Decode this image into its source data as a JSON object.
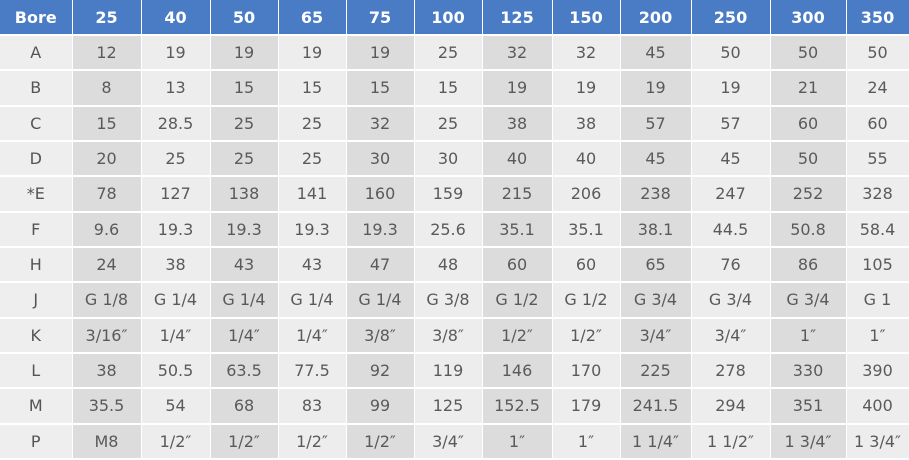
{
  "table": {
    "header": [
      "Bore",
      25,
      40,
      50,
      65,
      75,
      100,
      125,
      150,
      200,
      250,
      300,
      350
    ],
    "rows": [
      [
        "A",
        12,
        19,
        19,
        19,
        19,
        25,
        32,
        32,
        45,
        50,
        50,
        50
      ],
      [
        "B",
        8,
        13,
        15,
        15,
        15,
        15,
        19,
        19,
        19,
        19,
        21,
        24
      ],
      [
        "C",
        15,
        28.5,
        25,
        25,
        32,
        25,
        38,
        38,
        57,
        57,
        60,
        60
      ],
      [
        "D",
        20,
        25,
        25,
        25,
        30,
        30,
        40,
        40,
        45,
        45,
        50,
        55
      ],
      [
        "*E",
        78,
        127,
        138,
        141,
        160,
        159,
        215,
        206,
        238,
        247,
        252,
        328
      ],
      [
        "F",
        9.6,
        19.3,
        19.3,
        19.3,
        19.3,
        25.6,
        35.1,
        35.1,
        38.1,
        44.5,
        50.8,
        58.4
      ],
      [
        "H",
        24,
        38,
        43,
        43,
        47,
        48,
        60,
        60,
        65,
        76,
        86,
        105
      ],
      [
        "J",
        "G 1/8",
        "G 1/4",
        "G 1/4",
        "G 1/4",
        "G 1/4",
        "G 3/8",
        "G 1/2",
        "G 1/2",
        "G 3/4",
        "G 3/4",
        "G 3/4",
        "G 1"
      ],
      [
        "K",
        "3/16″",
        "1/4″",
        "1/4″",
        "1/4″",
        "3/8″",
        "3/8″",
        "1/2″",
        "1/2″",
        "3/4″",
        "3/4″",
        "1″",
        "1″"
      ],
      [
        "L",
        38,
        50.5,
        63.5,
        77.5,
        92,
        119,
        146,
        170,
        225,
        278,
        330,
        390
      ],
      [
        "M",
        35.5,
        54,
        68,
        83,
        99,
        125,
        152.5,
        179,
        241.5,
        294,
        351,
        400
      ],
      [
        "P",
        "M8",
        "1/2″",
        "1/2″",
        "1/2″",
        "1/2″",
        "3/4″",
        "1″",
        "1″",
        "1 1/4″",
        "1 1/2″",
        "1 3/4″",
        "1 3/4″"
      ]
    ]
  }
}
